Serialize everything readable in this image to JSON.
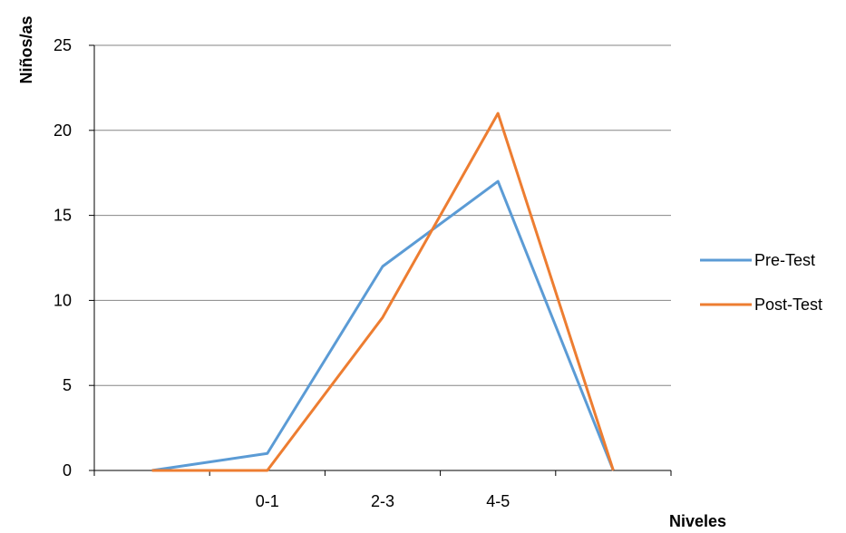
{
  "chart_data": {
    "type": "line",
    "categories": [
      "",
      "0-1",
      "2-3",
      "4-5",
      ""
    ],
    "series": [
      {
        "name": "Pre-Test",
        "values": [
          0,
          1,
          12,
          17,
          0
        ],
        "color": "#5B9BD5"
      },
      {
        "name": "Post-Test",
        "values": [
          0,
          0,
          9,
          21,
          0
        ],
        "color": "#ED7D31"
      }
    ],
    "title": "",
    "xlabel": "Niveles",
    "ylabel": "Niños/as",
    "ylim": [
      0,
      25
    ],
    "yticks": [
      0,
      5,
      10,
      15,
      20,
      25
    ],
    "grid": true,
    "legend_position": "right",
    "gridline_color": "#868686",
    "axis_color": "#000000"
  }
}
